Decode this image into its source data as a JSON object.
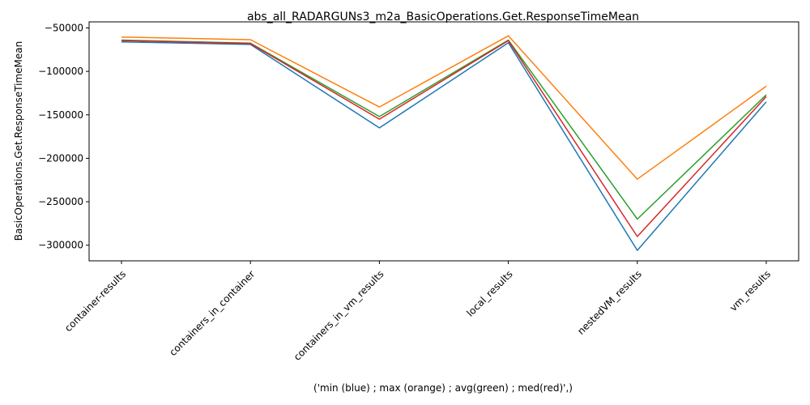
{
  "chart_data": {
    "type": "line",
    "title": "abs_all_RADARGUNs3_m2a_BasicOperations.Get.ResponseTimeMean",
    "xlabel": "('min (blue) ; max (orange) ; avg(green) ; med(red)',)",
    "ylabel": "BasicOperations.Get.ResponseTimeMean",
    "categories": [
      "container-results",
      "containers_in_container",
      "containers_in_vm_results",
      "local_results",
      "nestedVM_results",
      "vm_results"
    ],
    "ylim": [
      -318000,
      -43000
    ],
    "yticks": [
      -300000,
      -250000,
      -200000,
      -150000,
      -100000,
      -50000
    ],
    "ytick_labels": [
      "−300000",
      "−250000",
      "−200000",
      "−150000",
      "−100000",
      "−50000"
    ],
    "grid": false,
    "series": [
      {
        "color": "#1f77b4",
        "values": [
          -66000,
          -69000,
          -165000,
          -67000,
          -306000,
          -135000
        ]
      },
      {
        "color": "#ff7f0e",
        "values": [
          -60500,
          -63500,
          -141000,
          -59000,
          -224000,
          -117000
        ]
      },
      {
        "color": "#2ca02c",
        "values": [
          -64000,
          -67500,
          -152000,
          -64000,
          -270000,
          -127000
        ]
      },
      {
        "color": "#d62728",
        "values": [
          -64500,
          -68000,
          -155000,
          -64500,
          -290000,
          -129000
        ]
      }
    ]
  }
}
